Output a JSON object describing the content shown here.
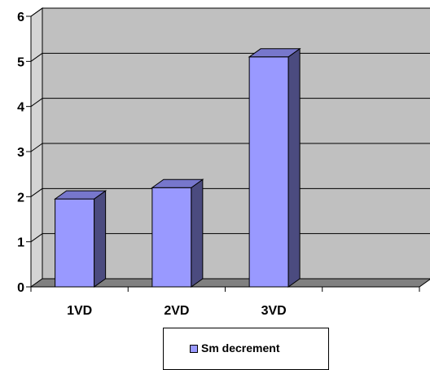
{
  "chart_data": {
    "type": "bar",
    "categories": [
      "1VD",
      "2VD",
      "3VD",
      ""
    ],
    "series": [
      {
        "name": "Sm decrement",
        "values": [
          1.95,
          2.2,
          5.1,
          null
        ]
      }
    ],
    "ylim": [
      0,
      6
    ],
    "yticks": [
      "0",
      "1",
      "2",
      "3",
      "4",
      "5",
      "6"
    ],
    "grid": true,
    "legend": "bottom",
    "colors": {
      "bar_front": "#9999ff",
      "bar_side": "#4b4b7f",
      "bar_top": "#7777cc",
      "wall": "#c0c0c0",
      "floor": "#808080"
    }
  }
}
